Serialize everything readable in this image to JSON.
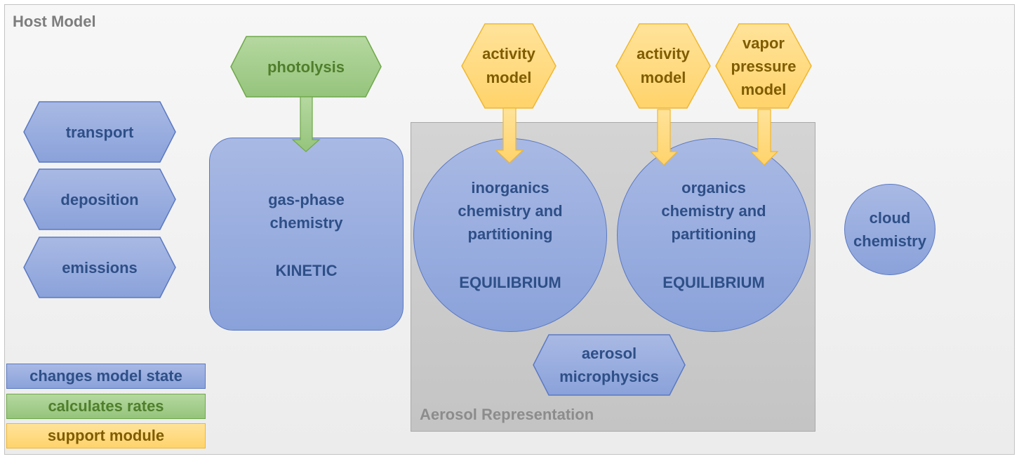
{
  "host_model": {
    "title": "Host Model"
  },
  "aerosol_representation": {
    "title": "Aerosol Representation"
  },
  "host_processes": [
    {
      "name": "transport",
      "label": "transport"
    },
    {
      "name": "deposition",
      "label": "deposition"
    },
    {
      "name": "emissions",
      "label": "emissions"
    }
  ],
  "photolysis": {
    "label": "photolysis"
  },
  "gas_phase": {
    "label": "gas-phase\nchemistry",
    "type_label": "KINETIC"
  },
  "support_modules": [
    {
      "label": "activity\nmodel"
    },
    {
      "label": "activity\nmodel"
    },
    {
      "label": "vapor\npressure\nmodel"
    }
  ],
  "inorganics": {
    "label": "inorganics\nchemistry and\npartitioning",
    "type_label": "EQUILIBRIUM"
  },
  "organics": {
    "label": "organics\nchemistry and\npartitioning",
    "type_label": "EQUILIBRIUM"
  },
  "cloud": {
    "label": "cloud\nchemistry"
  },
  "microphysics": {
    "label": "aerosol\nmicrophysics"
  },
  "legend": {
    "changes_state": "changes model state",
    "calculates_rates": "calculates rates",
    "support_module": "support module"
  },
  "colors": {
    "state_fill": "#99ade0",
    "state_border": "#5b79c2",
    "state_text": "#2e4f87",
    "rates_fill": "#a3cf8c",
    "rates_text": "#4f7f2c",
    "support_fill": "#ffd97c",
    "support_text": "#7f5c00"
  }
}
